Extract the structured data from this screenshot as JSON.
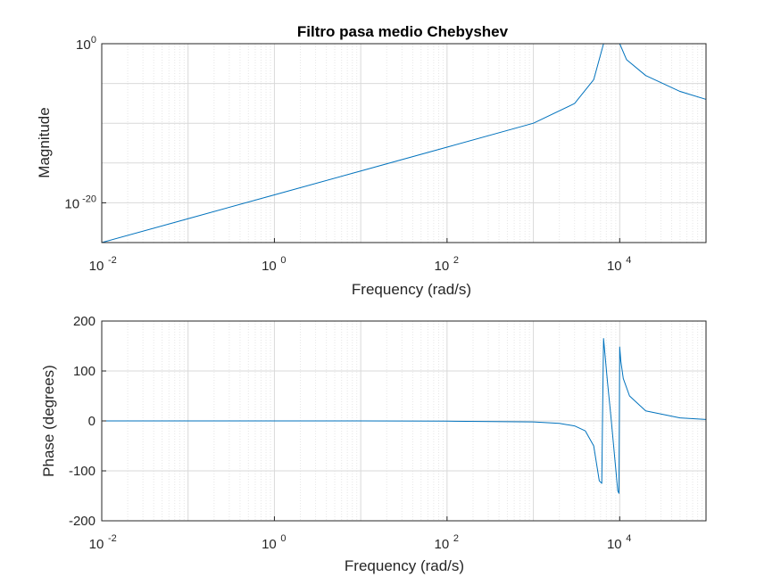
{
  "title": "Filtro pasa medio Chebyshev",
  "colors": {
    "line": "#0072bd",
    "axes": "#262626",
    "grid_major": "#d9d9d9",
    "grid_minor": "#e6e6e6",
    "background": "#ffffff"
  },
  "chart_data": [
    {
      "type": "line",
      "name": "magnitude",
      "title": "Filtro pasa medio Chebyshev",
      "xlabel": "Frequency (rad/s)",
      "ylabel": "Magnitude",
      "xscale": "log",
      "yscale": "log",
      "xlim": [
        0.01,
        100000
      ],
      "ylim": [
        1e-25,
        1
      ],
      "xticks": [
        {
          "base": "10",
          "exp": "-2"
        },
        {
          "base": "10",
          "exp": "0"
        },
        {
          "base": "10",
          "exp": "2"
        },
        {
          "base": "10",
          "exp": "4"
        }
      ],
      "yticks": [
        {
          "base": "10",
          "exp": "-20"
        },
        {
          "base": "10",
          "exp": "0"
        }
      ],
      "grid": true,
      "series": [
        {
          "x": [
            0.01,
            0.1,
            1,
            10,
            100,
            1000,
            3000,
            5000,
            6500,
            7000,
            10000,
            12000,
            20000,
            50000,
            100000
          ],
          "y": [
            1e-25,
            1e-22,
            1e-19,
            1e-16,
            1e-13,
            1e-10,
            3e-08,
            3e-05,
            1,
            1,
            1,
            0.01,
            0.0001,
            1e-06,
            1e-07
          ]
        }
      ]
    },
    {
      "type": "line",
      "name": "phase",
      "xlabel": "Frequency (rad/s)",
      "ylabel": "Phase (degrees)",
      "xscale": "log",
      "yscale": "linear",
      "xlim": [
        0.01,
        100000
      ],
      "ylim": [
        -200,
        200
      ],
      "xticks": [
        {
          "base": "10",
          "exp": "-2"
        },
        {
          "base": "10",
          "exp": "0"
        },
        {
          "base": "10",
          "exp": "2"
        },
        {
          "base": "10",
          "exp": "4"
        }
      ],
      "yticks": [
        200,
        100,
        0,
        -100,
        -200
      ],
      "grid": true,
      "series": [
        {
          "x": [
            0.01,
            1,
            10,
            100,
            1000,
            2000,
            3000,
            4000,
            5000,
            5800,
            6200,
            6300,
            6500,
            6700,
            7200,
            8000,
            9500,
            9800,
            10000,
            10300,
            11000,
            13000,
            20000,
            50000,
            100000
          ],
          "y": [
            0,
            0,
            0,
            -0.5,
            -2,
            -5,
            -10,
            -20,
            -50,
            -120,
            -125,
            -20,
            165,
            140,
            80,
            0,
            -140,
            -145,
            148,
            120,
            85,
            50,
            20,
            6,
            3
          ]
        }
      ]
    }
  ]
}
